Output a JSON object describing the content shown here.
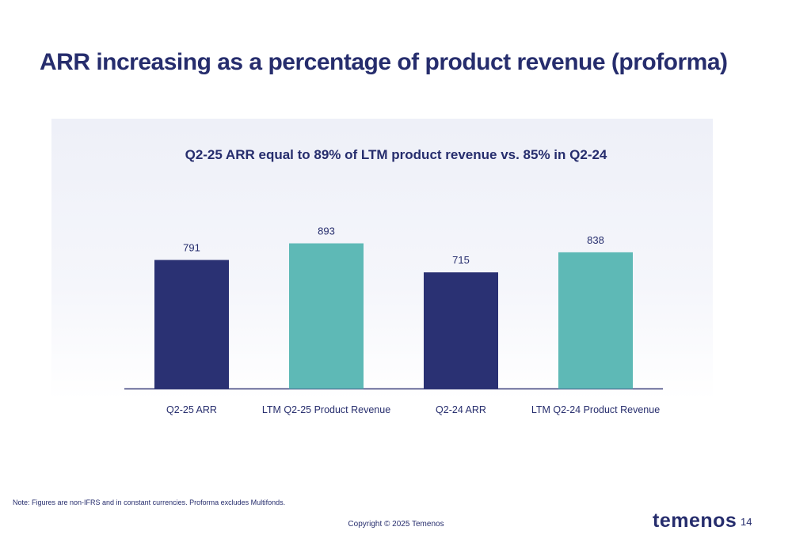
{
  "page": {
    "title": "ARR increasing as a percentage of product revenue (proforma)",
    "footnote": "Note: Figures are non-IFRS and in constant currencies. Proforma excludes Multifonds.",
    "copyright": "Copyright © 2025 Temenos",
    "logo_text": "temenos",
    "page_number": "14"
  },
  "colors": {
    "arr": "#2a3173",
    "revenue": "#5eb9b6",
    "text": "#262d6d",
    "axis": "#3a3f7a"
  },
  "chart_data": {
    "type": "bar",
    "title": "Q2-25 ARR equal to 89% of LTM product revenue vs. 85% in Q2-24",
    "xlabel": "",
    "ylabel": "",
    "ylim": [
      0,
      1000
    ],
    "grid": false,
    "categories": [
      "Q2-25 ARR",
      "LTM Q2-25 Product Revenue",
      "Q2-24 ARR",
      "LTM Q2-24 Product Revenue"
    ],
    "values": [
      791,
      893,
      715,
      838
    ],
    "data_labels": [
      "791",
      "893",
      "715",
      "838"
    ],
    "bar_colors": [
      "#2a3173",
      "#5eb9b6",
      "#2a3173",
      "#5eb9b6"
    ]
  }
}
